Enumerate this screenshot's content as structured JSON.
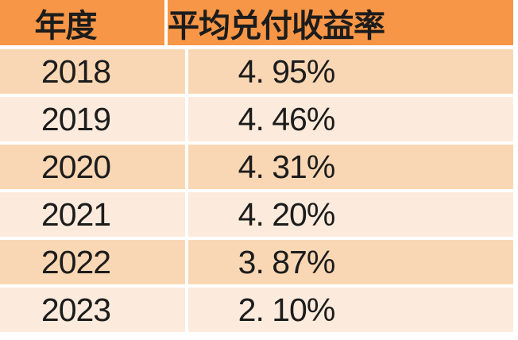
{
  "table": {
    "headers": [
      "年度",
      "平均兑付收益率"
    ],
    "rows": [
      {
        "year": "2018",
        "rate": "4. 95%"
      },
      {
        "year": "2019",
        "rate": "4. 46%"
      },
      {
        "year": "2020",
        "rate": "4. 31%"
      },
      {
        "year": "2021",
        "rate": "4. 20%"
      },
      {
        "year": "2022",
        "rate": "3. 87%"
      },
      {
        "year": "2023",
        "rate": "2. 10%"
      }
    ]
  },
  "chart_data": {
    "type": "table",
    "title": "",
    "columns": [
      "年度",
      "平均兑付收益率"
    ],
    "rows": [
      [
        "2018",
        "4.95%"
      ],
      [
        "2019",
        "4.46%"
      ],
      [
        "2020",
        "4.31%"
      ],
      [
        "2021",
        "4.20%"
      ],
      [
        "2022",
        "3.87%"
      ],
      [
        "2023",
        "2.10%"
      ]
    ],
    "series": [
      {
        "name": "平均兑付收益率",
        "x": [
          2018,
          2019,
          2020,
          2021,
          2022,
          2023
        ],
        "values": [
          4.95,
          4.46,
          4.31,
          4.2,
          3.87,
          2.1
        ],
        "unit": "%"
      }
    ]
  },
  "colors": {
    "header_bg": "#F79646",
    "row_alt_dark": "#FAD7B4",
    "row_alt_light": "#FCEBDC",
    "divider": "#FFFFFF",
    "text": "#1C1C1C",
    "page_bg": "#FFFFFF"
  }
}
